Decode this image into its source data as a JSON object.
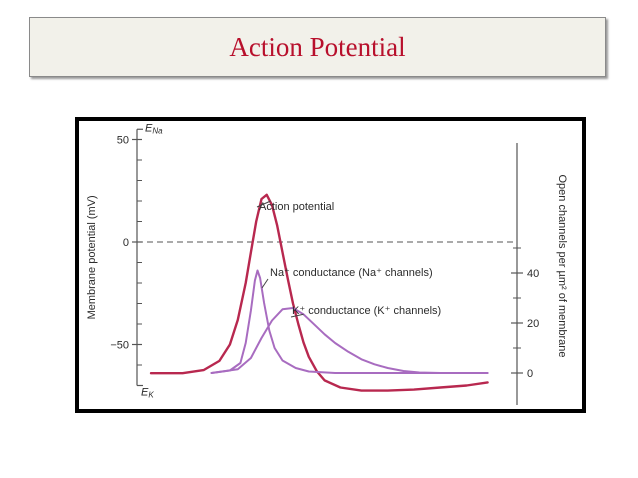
{
  "slide": {
    "title": "Action Potential"
  },
  "chart_data": {
    "type": "line",
    "title": "",
    "xlabel": "",
    "ylabel_left": "Membrane potential (mV)",
    "ylabel_right": "Open channels per µm² of membrane",
    "left_axis": {
      "ylim": [
        -70,
        55
      ],
      "tick_labels": [
        "50",
        "0",
        "−50"
      ],
      "ticks": [
        50,
        0,
        -50
      ],
      "top_marker": "E",
      "top_marker_sub": "Na",
      "bottom_marker": "E",
      "bottom_marker_sub": "K",
      "dashed_reference": 0
    },
    "right_axis": {
      "tick_labels": [
        "40",
        "20",
        "0"
      ],
      "ticks": [
        40,
        20,
        0
      ]
    },
    "annotations": [
      "Action potential",
      "Na⁺ conductance (Na⁺ channels)",
      "K⁺ conductance (K⁺ channels)"
    ],
    "series": [
      {
        "name": "Action potential",
        "axis": "left",
        "color": "#b8284f",
        "points": [
          [
            0,
            -64
          ],
          [
            12,
            -64
          ],
          [
            20,
            -62.5
          ],
          [
            26,
            -58
          ],
          [
            30,
            -50
          ],
          [
            33,
            -38
          ],
          [
            36,
            -20
          ],
          [
            38,
            -5
          ],
          [
            40,
            10
          ],
          [
            42,
            21
          ],
          [
            44,
            23
          ],
          [
            46,
            18
          ],
          [
            48,
            8
          ],
          [
            50,
            -5
          ],
          [
            52,
            -18
          ],
          [
            54,
            -30
          ],
          [
            56,
            -40
          ],
          [
            58,
            -49
          ],
          [
            60,
            -56
          ],
          [
            63,
            -63
          ],
          [
            66,
            -67.5
          ],
          [
            72,
            -71
          ],
          [
            80,
            -72.5
          ],
          [
            90,
            -72.5
          ],
          [
            100,
            -72
          ],
          [
            110,
            -71
          ],
          [
            120,
            -70
          ],
          [
            128,
            -68.5
          ]
        ]
      },
      {
        "name": "Na⁺ conductance (Na⁺ channels)",
        "axis": "right",
        "color": "#a86cc0",
        "points": [
          [
            23,
            0
          ],
          [
            30,
            1
          ],
          [
            34,
            4
          ],
          [
            36,
            12
          ],
          [
            38,
            25
          ],
          [
            39.5,
            37
          ],
          [
            40.5,
            41
          ],
          [
            41.5,
            38
          ],
          [
            43,
            28
          ],
          [
            45,
            17
          ],
          [
            47,
            10
          ],
          [
            50,
            5
          ],
          [
            55,
            2
          ],
          [
            60,
            0.6
          ],
          [
            70,
            0
          ],
          [
            128,
            0
          ]
        ]
      },
      {
        "name": "K⁺ conductance (K⁺ channels)",
        "axis": "right",
        "color": "#a86cc0",
        "points": [
          [
            23,
            0
          ],
          [
            33,
            1.5
          ],
          [
            38,
            6
          ],
          [
            42,
            14
          ],
          [
            46,
            21
          ],
          [
            50,
            25.5
          ],
          [
            54,
            26
          ],
          [
            58,
            23.5
          ],
          [
            62,
            19.5
          ],
          [
            66,
            15.5
          ],
          [
            70,
            12
          ],
          [
            75,
            8.5
          ],
          [
            80,
            5.5
          ],
          [
            85,
            3.5
          ],
          [
            90,
            2
          ],
          [
            96,
            0.8
          ],
          [
            102,
            0.2
          ],
          [
            110,
            0
          ],
          [
            128,
            0
          ]
        ]
      }
    ]
  }
}
